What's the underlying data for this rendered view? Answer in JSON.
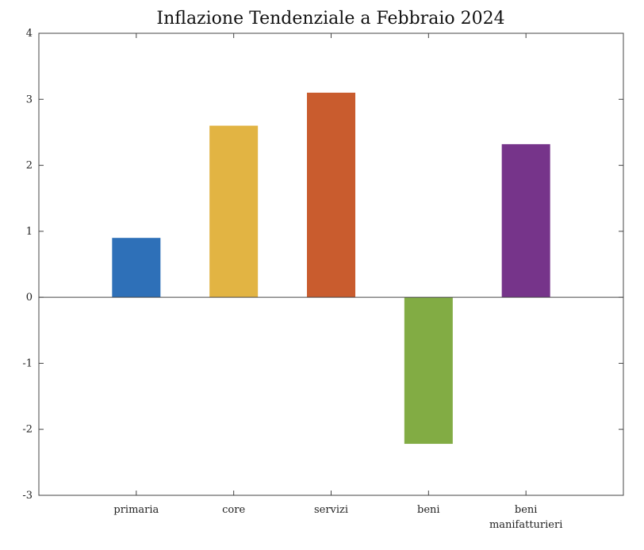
{
  "chart_data": {
    "type": "bar",
    "title": "Inflazione Tendenziale a Febbraio 2024",
    "xlabel": "",
    "ylabel": "",
    "ylim": [
      -3,
      4
    ],
    "yticks": [
      4,
      3,
      2,
      1,
      0,
      -1,
      -2,
      -3
    ],
    "ytick_labels": [
      "4",
      "3",
      "2",
      "1",
      "0",
      "-1",
      "-2",
      "-3"
    ],
    "categories": [
      [
        "primaria"
      ],
      [
        "core"
      ],
      [
        "servizi"
      ],
      [
        "beni"
      ],
      [
        "beni",
        "manifatturieri"
      ]
    ],
    "values": [
      0.9,
      2.6,
      3.1,
      -2.22,
      2.32
    ],
    "bar_colors": [
      "#2e70b8",
      "#e2b443",
      "#c95c2e",
      "#82ac44",
      "#76348a"
    ],
    "grid": false,
    "legend": "none"
  }
}
